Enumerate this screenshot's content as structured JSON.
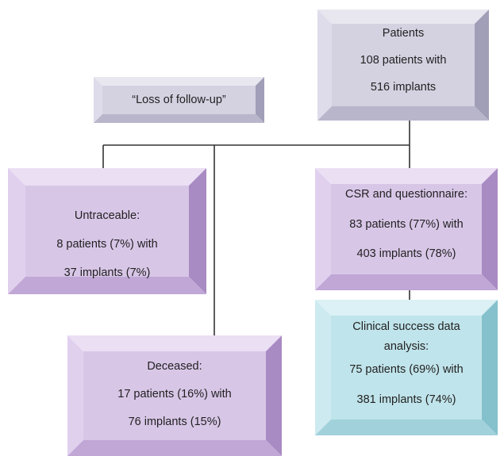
{
  "nodes": [
    {
      "lines": [
        "Patients",
        "108 patients with",
        "516 implants"
      ]
    },
    {
      "lines": [
        "“Loss of follow-up”"
      ]
    },
    {
      "lines": [
        "Untraceable:",
        "8 patients (7%) with",
        "37 implants (7%)"
      ]
    },
    {
      "lines": [
        "CSR and questionnaire:",
        "83 patients  (77%) with",
        "403 implants (78%)"
      ]
    },
    {
      "lines": [
        "Clinical success data",
        "analysis:",
        "75 patients  (69%) with",
        "381 implants (74%)"
      ]
    },
    {
      "lines": [
        "Deceased:",
        "17 patients (16%) with",
        "76 implants (15%)"
      ]
    }
  ]
}
